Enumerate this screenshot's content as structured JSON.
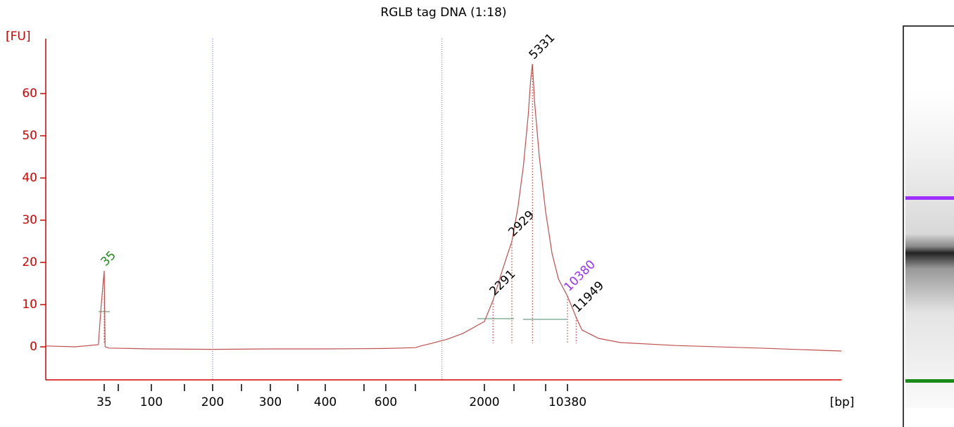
{
  "chart_data": {
    "type": "line",
    "title": "RGLB tag DNA (1:18)",
    "ylabel": "[FU]",
    "xlabel": "[bp]",
    "ylim": [
      -8,
      73
    ],
    "yticks": [
      0,
      10,
      20,
      30,
      40,
      50,
      60
    ],
    "xlim": [
      25,
      60000
    ],
    "xticks": [
      35,
      100,
      200,
      300,
      400,
      600,
      2000,
      10380
    ],
    "xminorticks": [
      50,
      150,
      250,
      350,
      500,
      700,
      3000,
      7000
    ],
    "region_lines": [
      200,
      1200
    ],
    "series": [
      {
        "name": "RGLB tag DNA (1:18)",
        "color": "#c0504d",
        "x": [
          25,
          30,
          34,
          34.5,
          35,
          35.5,
          36,
          40,
          100,
          200,
          300,
          400,
          600,
          700,
          800,
          1000,
          1300,
          1600,
          2000,
          2291,
          2600,
          2929,
          3500,
          4200,
          4800,
          5100,
          5331,
          5600,
          6200,
          7000,
          8000,
          9000,
          10380,
          11949,
          13000,
          16000,
          20000,
          30000,
          45000,
          60000
        ],
        "values": [
          0.2,
          0,
          0.5,
          10,
          18,
          8,
          0,
          -0.3,
          -0.5,
          -0.6,
          -0.5,
          -0.5,
          -0.4,
          -0.2,
          0.2,
          0.8,
          1.8,
          3.2,
          6,
          11,
          18,
          25,
          33,
          43,
          55,
          63,
          67,
          58,
          45,
          32,
          22,
          16,
          12,
          7,
          4,
          2,
          1,
          0.3,
          -0.3,
          -1
        ]
      }
    ],
    "peaks": [
      {
        "x": 35,
        "y": 18,
        "color": "#1a8a1a"
      },
      {
        "x": 2291,
        "y": 11,
        "color": "#000000"
      },
      {
        "x": 2929,
        "y": 25,
        "color": "#000000"
      },
      {
        "x": 5331,
        "y": 67,
        "color": "#000000"
      },
      {
        "x": 10380,
        "y": 12,
        "color": "#9b30ff"
      },
      {
        "x": 11949,
        "y": 7,
        "color": "#000000"
      }
    ],
    "axis_color": "#d40000"
  }
}
